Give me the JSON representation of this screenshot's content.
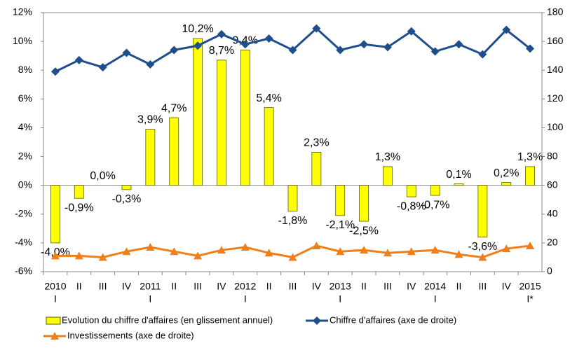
{
  "chart_data": {
    "type": "bar",
    "categories": [
      [
        "2010",
        "I"
      ],
      [
        "II"
      ],
      [
        "III"
      ],
      [
        "IV"
      ],
      [
        "2011",
        "I"
      ],
      [
        "II"
      ],
      [
        "III"
      ],
      [
        "IV"
      ],
      [
        "2012",
        "I"
      ],
      [
        "II"
      ],
      [
        "III"
      ],
      [
        "IV"
      ],
      [
        "2013",
        "I"
      ],
      [
        "II"
      ],
      [
        "III"
      ],
      [
        "IV"
      ],
      [
        "2014",
        "I"
      ],
      [
        "II"
      ],
      [
        "III"
      ],
      [
        "IV"
      ],
      [
        "2015",
        "I*"
      ]
    ],
    "series": [
      {
        "name": "Evolution du chiffre d'affaires (en glissement annuel)",
        "color": "#ffff00",
        "type": "bar",
        "values": [
          -4.0,
          -0.9,
          0.0,
          -0.3,
          3.9,
          4.7,
          10.2,
          8.7,
          9.4,
          5.4,
          -1.8,
          2.3,
          -2.1,
          -2.5,
          1.3,
          -0.8,
          -0.7,
          0.1,
          -3.6,
          0.2,
          1.3
        ],
        "value_labels": [
          "-4,0%",
          "-0,9%",
          "0,0%",
          "-0,3%",
          "3,9%",
          "4,7%",
          "10,2%",
          "8,7%",
          "9,4%",
          "5,4%",
          "-1,8%",
          "2,3%",
          "-2,1%",
          "-2,5%",
          "1,3%",
          "-0,8%",
          "-0,7%",
          "0,1%",
          "-3,6%",
          "0,2%",
          "1,3%"
        ]
      },
      {
        "name": "Chiffre d'affaires (axe de droite)",
        "color": "#1f4e8c",
        "type": "line",
        "marker": "diamond",
        "axis": "y2",
        "values": [
          139,
          147,
          142,
          152,
          144,
          154,
          157,
          165,
          158,
          162,
          154,
          169,
          154,
          158,
          156,
          167,
          153,
          158,
          151,
          168,
          155
        ]
      },
      {
        "name": "Investissements (axe de droite)",
        "color": "#f07f1a",
        "type": "line",
        "marker": "triangle",
        "axis": "y2",
        "values": [
          11,
          11,
          10,
          14,
          17,
          14,
          11,
          15,
          17,
          13,
          10,
          18,
          14,
          15,
          13,
          14,
          15,
          12,
          10,
          16,
          18
        ]
      }
    ],
    "ylim": [
      -6,
      12
    ],
    "yticks": [
      {
        "value": -6,
        "label": "-6%"
      },
      {
        "value": -4,
        "label": "-4%"
      },
      {
        "value": -2,
        "label": "-2%"
      },
      {
        "value": 0,
        "label": "0%"
      },
      {
        "value": 2,
        "label": "2%"
      },
      {
        "value": 4,
        "label": "4%"
      },
      {
        "value": 6,
        "label": "6%"
      },
      {
        "value": 8,
        "label": "8%"
      },
      {
        "value": 10,
        "label": "10%"
      },
      {
        "value": 12,
        "label": "12%"
      }
    ],
    "y2lim": [
      0,
      180
    ],
    "y2ticks": [
      0,
      20,
      40,
      60,
      80,
      100,
      120,
      140,
      160,
      180
    ],
    "grid": false
  }
}
